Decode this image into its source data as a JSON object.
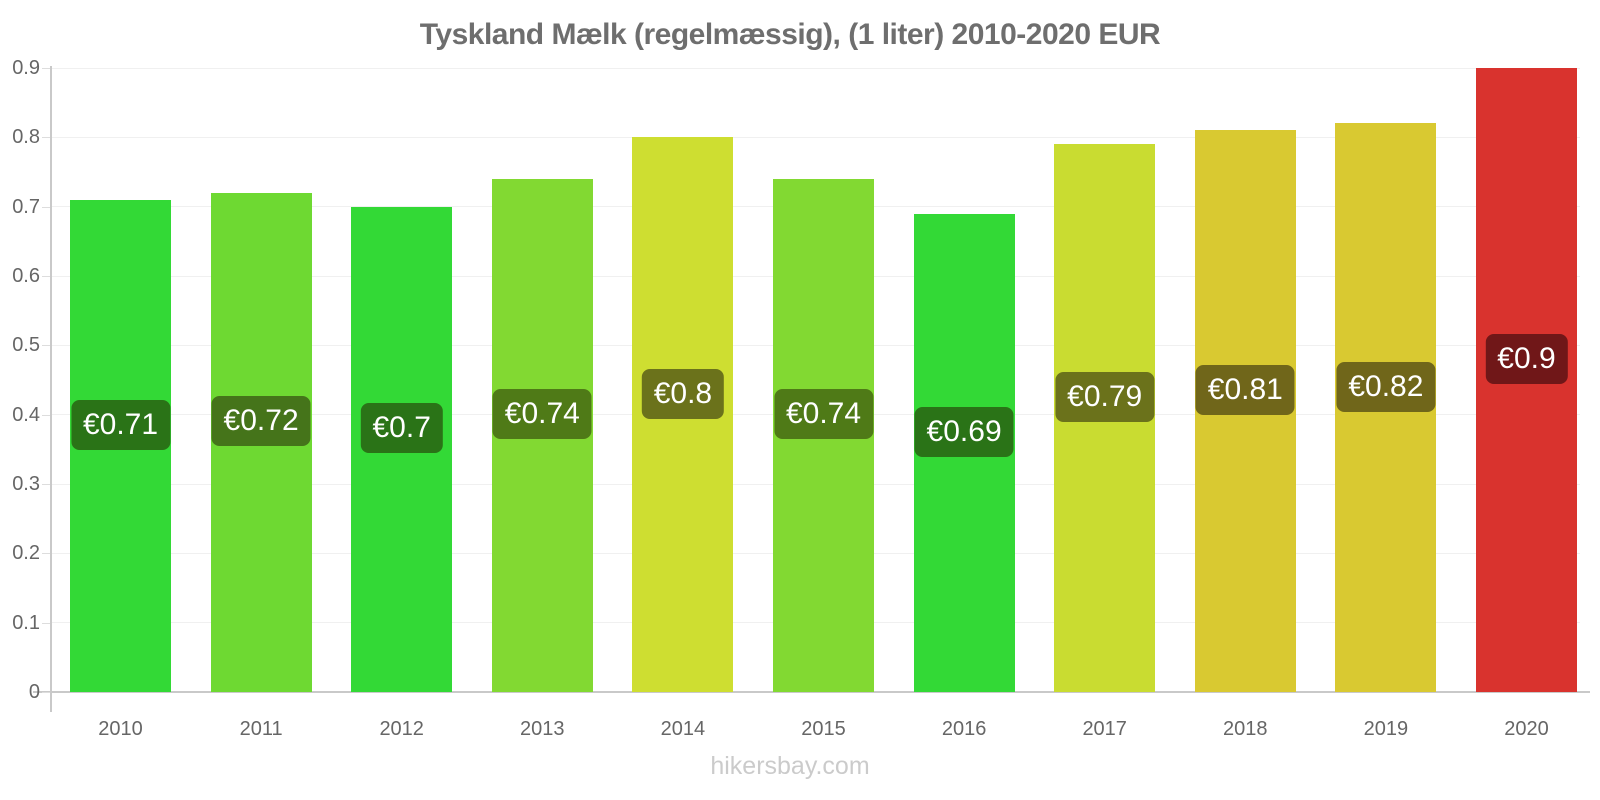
{
  "title": "Tyskland Mælk (regelmæssig), (1 liter) 2010-2020 EUR",
  "watermark": "hikersbay.com",
  "colors": {
    "page_bg": "#ffffff",
    "title_color": "#6e6e6e",
    "axis_text": "#666666",
    "axis_line": "#c9c9c9",
    "tick_color": "#dddddd",
    "grid_color": "#f0f0f0",
    "value_text": "#ffffff",
    "watermark_color": "#cbcbcb"
  },
  "chart_data": {
    "type": "bar",
    "title": "Tyskland Mælk (regelmæssig), (1 liter) 2010-2020 EUR",
    "xlabel": "",
    "ylabel": "",
    "categories": [
      "2010",
      "2011",
      "2012",
      "2013",
      "2014",
      "2015",
      "2016",
      "2017",
      "2018",
      "2019",
      "2020"
    ],
    "values": [
      0.71,
      0.72,
      0.7,
      0.74,
      0.8,
      0.74,
      0.69,
      0.79,
      0.81,
      0.82,
      0.9
    ],
    "value_labels": [
      "€0.71",
      "€0.72",
      "€0.7",
      "€0.74",
      "€0.8",
      "€0.74",
      "€0.69",
      "€0.79",
      "€0.81",
      "€0.82",
      "€0.9"
    ],
    "bar_colors": [
      "#33d936",
      "#6ed932",
      "#33d936",
      "#82d932",
      "#cede31",
      "#82d932",
      "#33d936",
      "#c9dc31",
      "#d9c931",
      "#d9c931",
      "#d9332e"
    ],
    "label_bg_colors": [
      "#2a7317",
      "#45741a",
      "#2a7317",
      "#4f7a17",
      "#6b721b",
      "#4f7a17",
      "#2a7317",
      "#6b721b",
      "#70661a",
      "#70661a",
      "#701718"
    ],
    "currency_unit": "EUR",
    "ylim": [
      0,
      0.9
    ],
    "yticks": [
      0,
      0.1,
      0.2,
      0.3,
      0.4,
      0.5,
      0.6,
      0.7,
      0.8,
      0.9
    ],
    "ytick_labels": [
      "0",
      "0.1",
      "0.2",
      "0.3",
      "0.4",
      "0.5",
      "0.6",
      "0.7",
      "0.8",
      "0.9"
    ],
    "grid": "horizontal-faint",
    "legend": "none"
  }
}
